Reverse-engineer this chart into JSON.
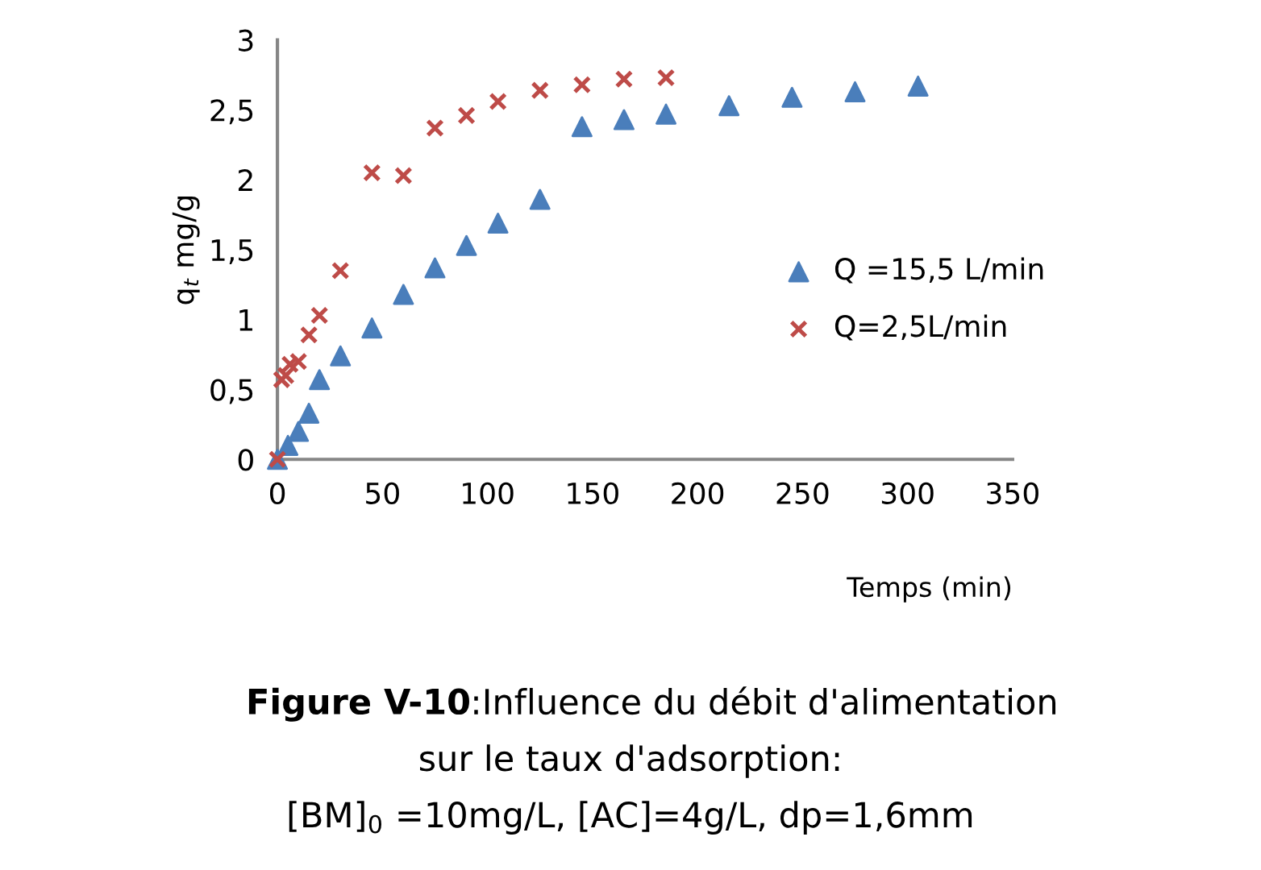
{
  "chart_data": {
    "type": "scatter",
    "xlabel": "Temps (min)",
    "ylabel": "q$_{t}$ mg/g",
    "annotations": [
      "Figure V-10",
      ":Influence du débit d'alimentation",
      "sur le taux d'adsorption:",
      "[BM]$_{0}$ =10mg/L, [AC]=4g/L, dp=1,6mm"
    ],
    "series": [
      {
        "name": "Q =15,5 L/min",
        "color": "#4a7ebb",
        "marker": "triangle",
        "x": [
          0,
          2,
          5,
          10,
          15,
          20,
          30,
          45,
          60,
          75,
          90,
          105,
          125,
          145,
          165,
          185,
          215,
          245,
          275,
          305
        ],
        "values": [
          0,
          null,
          0.1,
          0.2,
          0.33,
          0.57,
          0.74,
          0.94,
          1.18,
          1.37,
          1.53,
          1.69,
          1.86,
          2.38,
          2.43,
          2.47,
          2.53,
          2.59,
          2.63,
          2.67
        ]
      },
      {
        "name": "Q=2,5L/min",
        "color": "#be4b48",
        "marker": "cross",
        "x": [
          0,
          2,
          4,
          6,
          10,
          15,
          20,
          30,
          45,
          60,
          75,
          90,
          105,
          125,
          145,
          165,
          185
        ],
        "values": [
          0,
          0.57,
          0.6,
          0.68,
          0.7,
          0.89,
          1.03,
          1.35,
          2.05,
          2.03,
          2.37,
          2.46,
          2.56,
          2.64,
          2.68,
          2.72,
          2.73
        ]
      }
    ],
    "xlim": [
      0,
      350
    ],
    "xticks": [
      0,
      50,
      100,
      150,
      200,
      250,
      300,
      350
    ],
    "ylim": [
      0,
      3
    ],
    "yticks": [
      0,
      {
        "value": 0.5,
        "label": "0,5"
      },
      1,
      {
        "value": 1.5,
        "label": "1,5"
      },
      2,
      {
        "value": 2.5,
        "label": "2,5"
      },
      3
    ],
    "legend": "right",
    "grid": false
  }
}
